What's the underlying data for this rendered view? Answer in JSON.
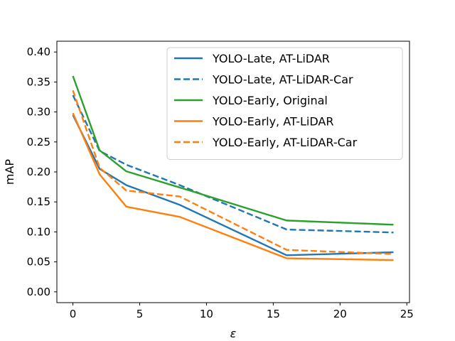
{
  "chart_data": {
    "type": "line",
    "title": "",
    "xlabel": "ε",
    "ylabel": "mAP",
    "xlim": [
      -1.2,
      25.2
    ],
    "ylim": [
      -0.018,
      0.418
    ],
    "xticks": [
      0,
      5,
      10,
      15,
      20,
      25
    ],
    "xtick_labels": [
      "0",
      "5",
      "10",
      "15",
      "20",
      "25"
    ],
    "yticks": [
      0.0,
      0.05,
      0.1,
      0.15,
      0.2,
      0.25,
      0.3,
      0.35,
      0.4
    ],
    "ytick_labels": [
      "0.00",
      "0.05",
      "0.10",
      "0.15",
      "0.20",
      "0.25",
      "0.30",
      "0.35",
      "0.40"
    ],
    "grid": false,
    "legend_position": "top-right",
    "series": [
      {
        "name": "YOLO-Late, AT-LiDAR",
        "color": "#1f77b4",
        "style": "solid",
        "x": [
          0,
          2,
          4,
          8,
          16,
          24
        ],
        "y": [
          0.295,
          0.205,
          0.178,
          0.145,
          0.061,
          0.066
        ]
      },
      {
        "name": "YOLO-Late, AT-LiDAR-Car",
        "color": "#1f77b4",
        "style": "dashed",
        "x": [
          0,
          2,
          4,
          8,
          16,
          24
        ],
        "y": [
          0.328,
          0.235,
          0.212,
          0.178,
          0.104,
          0.099
        ]
      },
      {
        "name": "YOLO-Early, Original",
        "color": "#2ca02c",
        "style": "solid",
        "x": [
          0,
          2,
          4,
          8,
          16,
          24
        ],
        "y": [
          0.36,
          0.236,
          0.201,
          0.174,
          0.119,
          0.112
        ]
      },
      {
        "name": "YOLO-Early, AT-LiDAR",
        "color": "#ff7f0e",
        "style": "solid",
        "x": [
          0,
          2,
          4,
          8,
          16,
          24
        ],
        "y": [
          0.298,
          0.196,
          0.142,
          0.125,
          0.056,
          0.053
        ]
      },
      {
        "name": "YOLO-Early, AT-LiDAR-Car",
        "color": "#ff7f0e",
        "style": "dashed",
        "x": [
          0,
          2,
          4,
          8,
          16,
          24
        ],
        "y": [
          0.336,
          0.207,
          0.169,
          0.159,
          0.07,
          0.063
        ]
      }
    ]
  }
}
